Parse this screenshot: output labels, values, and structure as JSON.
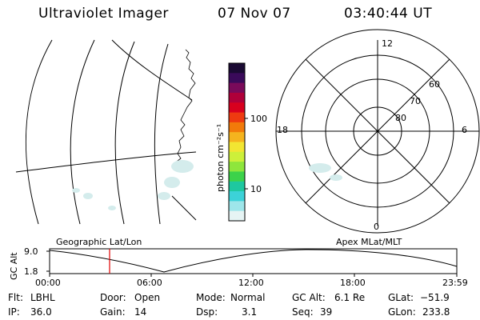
{
  "header": {
    "instrument": "Ultraviolet Imager",
    "date": "07 Nov 07",
    "time": "03:40:44 UT"
  },
  "colorbar": {
    "unit_label": "photon cm⁻²s⁻¹",
    "ticks": [
      "100",
      "10"
    ],
    "colors": [
      "#1a0a33",
      "#3a0a5a",
      "#7a0a5a",
      "#b0003a",
      "#d8001e",
      "#ee3a10",
      "#f27a0a",
      "#f5b41e",
      "#f2e632",
      "#cdf03a",
      "#8ee63c",
      "#3cd24a",
      "#1ec8a0",
      "#3cd2d8",
      "#9ee6ea",
      "#e6f4f4"
    ]
  },
  "polar_plot": {
    "mlt_labels": [
      "12",
      "18",
      "6",
      "0"
    ],
    "lat_labels": [
      "60",
      "70",
      "80"
    ]
  },
  "orbit_panel": {
    "geo_label": "Geographic Lat/Lon",
    "apex_label": "Apex MLat/MLT",
    "y_title": "GC Alt",
    "y_ticks": [
      "9.0",
      "1.8"
    ],
    "x_ticks": [
      "00:00",
      "06:00",
      "12:00",
      "18:00",
      "23:59"
    ],
    "current_time_marker": "03:40:44"
  },
  "info": {
    "flt_label": "Flt:",
    "flt_value": "LBHL",
    "ip_label": "IP:",
    "ip_value": "36.0",
    "door_label": "Door:",
    "door_value": "Open",
    "gain_label": "Gain:",
    "gain_value": "14",
    "mode_label": "Mode:",
    "mode_value": "Normal",
    "dsp_label": "Dsp:",
    "dsp_value": "3.1",
    "gcalt_label": "GC Alt:",
    "gcalt_value": "6.1 Re",
    "seq_label": "Seq:",
    "seq_value": "39",
    "glat_label": "GLat:",
    "glat_value": "−51.9",
    "glon_label": "GLon:",
    "glon_value": "233.8"
  }
}
